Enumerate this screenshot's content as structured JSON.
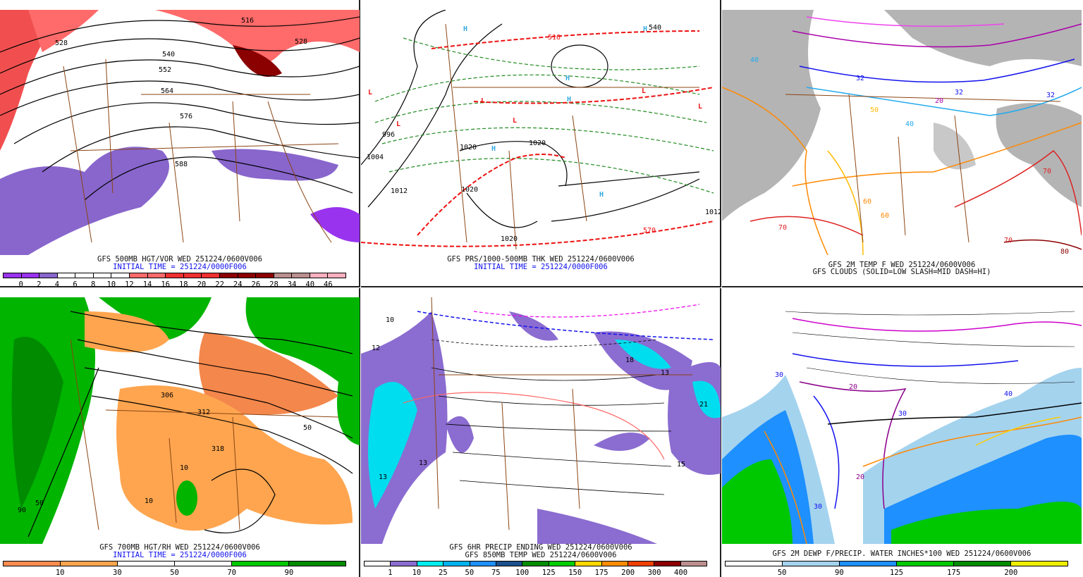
{
  "panels": [
    {
      "caption": "GFS 500MB HGT/VOR WED 251224/0600V006",
      "initial_time": "INITIAL TIME = 251224/0000F006",
      "contour_labels": [
        "516",
        "528",
        "540",
        "552",
        "564",
        "576",
        "588",
        "528"
      ],
      "colorbar": {
        "colors": [
          "#9933ee",
          "#9933ee",
          "#8866cc",
          "#ffffff",
          "#ffffff",
          "#ffffff",
          "#ffffff",
          "#ff6a6a",
          "#ff6a6a",
          "#ee3030",
          "#ee3030",
          "#ee3030",
          "#8b0000",
          "#8b0000",
          "#8b0000",
          "#bc8f8f",
          "#bc8f8f",
          "#ffb0c0",
          "#ffb0c0"
        ],
        "labels": [
          "0",
          "2",
          "4",
          "6",
          "8",
          "10",
          "12",
          "14",
          "16",
          "18",
          "20",
          "22",
          "24",
          "26",
          "28",
          "34",
          "40",
          "46"
        ]
      }
    },
    {
      "caption": "GFS PRS/1000-500MB THK WED 251224/0600V006",
      "initial_time": "INITIAL TIME = 251224/0000F006",
      "contour_labels": [
        "996",
        "1004",
        "1012",
        "1020",
        "1020",
        "1020",
        "1020",
        "516",
        "540",
        "570",
        "1012"
      ],
      "pressure_centers": [
        "L",
        "L",
        "L",
        "L",
        "L",
        "L",
        "H",
        "H",
        "H",
        "H",
        "H",
        "H"
      ]
    },
    {
      "caption": "GFS 2M TEMP F WED 251224/0600V006",
      "caption2": "GFS CLOUDS (SOLID=LOW SLASH=MID DASH=HI)",
      "contour_labels": [
        "40",
        "32",
        "20",
        "32",
        "40",
        "50",
        "60",
        "60",
        "70",
        "70",
        "80",
        "70",
        "32"
      ]
    },
    {
      "caption": "GFS 700MB HGT/RH WED 251224/0600V006",
      "initial_time": "INITIAL TIME = 251224/0000F006",
      "contour_labels": [
        "306",
        "312",
        "318",
        "50",
        "10",
        "10",
        "90",
        "50"
      ],
      "colorbar": {
        "colors": [
          "#ff8c50",
          "#ffa54f",
          "#ffffff",
          "#ffffff",
          "#00c800",
          "#008b00"
        ],
        "labels": [
          "10",
          "30",
          "50",
          "70",
          "90"
        ]
      }
    },
    {
      "caption": "GFS 6HR PRECIP ENDING WED 251224/0600V006",
      "caption2": "GFS 850MB TEMP WED 251224/0600V006",
      "contour_labels": [
        "10",
        "12",
        "13",
        "13",
        "18",
        "13",
        "15",
        "21"
      ],
      "colorbar": {
        "colors": [
          "#ffffff",
          "#8b6cd0",
          "#00eeee",
          "#00b2ee",
          "#1e90ff",
          "#1c4f8c",
          "#008b00",
          "#00cd00",
          "#ffd700",
          "#ff8c00",
          "#ee4000",
          "#8b0000",
          "#bc8f8f"
        ],
        "labels": [
          "1",
          "10",
          "25",
          "50",
          "75",
          "100",
          "125",
          "150",
          "175",
          "200",
          "300",
          "400"
        ]
      }
    },
    {
      "caption": "GFS 2M DEWP F/PRECIP. WATER INCHES*100 WED 251224/0600V006",
      "contour_labels": [
        "30",
        "20",
        "30",
        "20",
        "30",
        "40",
        "30"
      ],
      "colorbar": {
        "colors": [
          "#ffffff",
          "#a4d3ee",
          "#1e90ff",
          "#00c800",
          "#008b00",
          "#eeee00"
        ],
        "labels": [
          "50",
          "90",
          "125",
          "175",
          "200"
        ]
      }
    }
  ]
}
